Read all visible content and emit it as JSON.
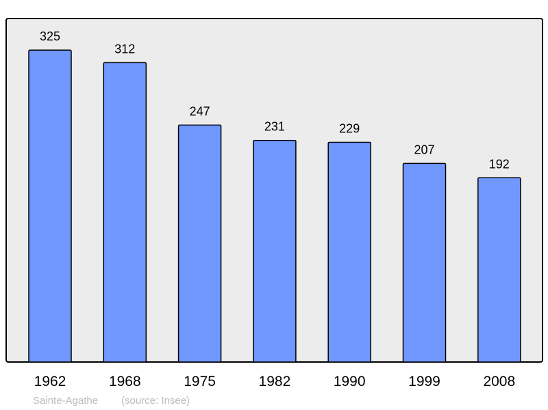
{
  "chart_data": {
    "type": "bar",
    "categories": [
      "1962",
      "1968",
      "1975",
      "1982",
      "1990",
      "1999",
      "2008"
    ],
    "values": [
      325,
      312,
      247,
      231,
      229,
      207,
      192
    ],
    "data_labels": [
      "325",
      "312",
      "247",
      "231",
      "229",
      "207",
      "192"
    ],
    "title": "",
    "xlabel": "",
    "ylabel": "",
    "ylim": [
      0,
      358
    ],
    "grid": false,
    "legend": "none",
    "colors": {
      "bar": "#7098ff",
      "plot_background": "#ececec",
      "border": "#000000",
      "footer_text": "#bbbbbb"
    }
  },
  "footer": {
    "place": "Sainte-Agathe",
    "source": "(source: Insee)"
  }
}
